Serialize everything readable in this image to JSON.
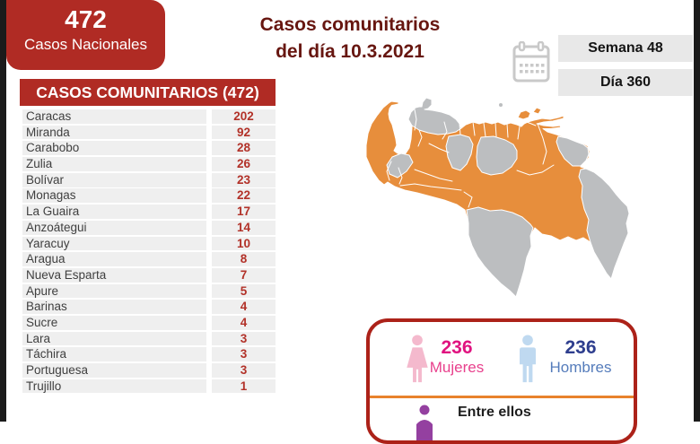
{
  "national_box": {
    "value": "472",
    "label": "Casos Nacionales"
  },
  "title": {
    "line1": "Casos comunitarios",
    "line2": "del día 10.3.2021"
  },
  "date_info": {
    "week": "Semana 48",
    "day": "Día 360"
  },
  "table": {
    "header": "CASOS COMUNITARIOS (472)",
    "rows": [
      [
        "Caracas",
        "202"
      ],
      [
        "Miranda",
        "92"
      ],
      [
        "Carabobo",
        "28"
      ],
      [
        "Zulia",
        "26"
      ],
      [
        "Bolívar",
        "23"
      ],
      [
        "Monagas",
        "22"
      ],
      [
        "La Guaira",
        "17"
      ],
      [
        "Anzoátegui",
        "14"
      ],
      [
        "Yaracuy",
        "10"
      ],
      [
        "Aragua",
        "8"
      ],
      [
        "Nueva Esparta",
        "7"
      ],
      [
        "Apure",
        "5"
      ],
      [
        "Barinas",
        "4"
      ],
      [
        "Sucre",
        "4"
      ],
      [
        "Lara",
        "3"
      ],
      [
        "Táchira",
        "3"
      ],
      [
        "Portuguesa",
        "3"
      ],
      [
        "Trujillo",
        "1"
      ]
    ]
  },
  "gender_box": {
    "women": {
      "value": "236",
      "label": "Mujeres"
    },
    "men": {
      "value": "236",
      "label": "Hombres"
    },
    "among_them": "Entre ellos"
  },
  "map": {
    "active_color": "#E78E3C",
    "inactive_color": "#BCBEC0",
    "inactive_states": [
      "Falcón",
      "Cojedes",
      "Guárico",
      "Mérida",
      "Delta Amacuro",
      "Amazonas",
      "Esequibo"
    ]
  },
  "colors": {
    "brand_red": "#B02B24",
    "title_red": "#671610",
    "divider_orange": "#E8822C"
  }
}
